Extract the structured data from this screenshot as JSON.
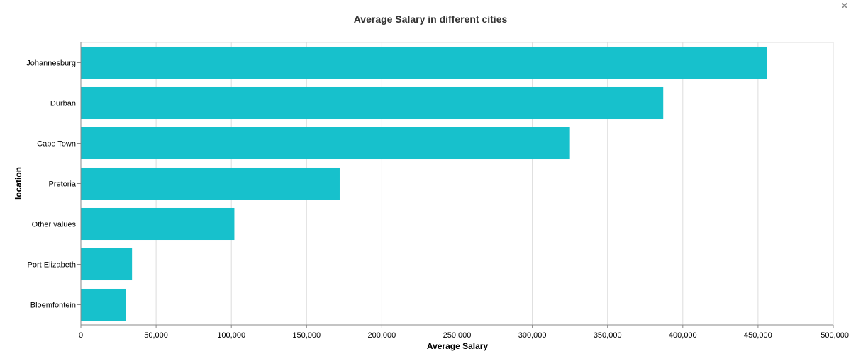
{
  "chart_data": {
    "type": "bar",
    "orientation": "horizontal",
    "title": "Average Salary in different cities",
    "xlabel": "Average Salary",
    "ylabel": "location",
    "categories": [
      "Johannesburg",
      "Durban",
      "Cape Town",
      "Pretoria",
      "Other values",
      "Port Elizabeth",
      "Bloemfontein"
    ],
    "values": [
      456000,
      387000,
      325000,
      172000,
      102000,
      34000,
      30000
    ],
    "xlim": [
      0,
      500000
    ],
    "xticks": [
      0,
      50000,
      100000,
      150000,
      200000,
      250000,
      300000,
      350000,
      400000,
      450000,
      500000
    ],
    "xtick_labels": [
      "0",
      "50,000",
      "100,000",
      "150,000",
      "200,000",
      "250,000",
      "300,000",
      "350,000",
      "400,000",
      "450,000",
      "500,000"
    ],
    "grid": true,
    "bar_color": "#17c1cc",
    "grid_color": "#dddddd",
    "axis_color": "#888888"
  },
  "ui": {
    "close_icon": "×"
  }
}
